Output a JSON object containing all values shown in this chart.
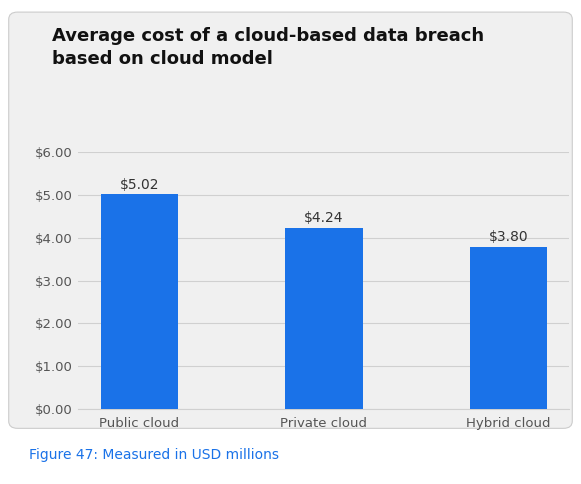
{
  "title": "Average cost of a cloud-based data breach\nbased on cloud model",
  "categories": [
    "Public cloud",
    "Private cloud",
    "Hybrid cloud"
  ],
  "values": [
    5.02,
    4.24,
    3.8
  ],
  "bar_color": "#1a72e8",
  "bar_labels": [
    "$5.02",
    "$4.24",
    "$3.80"
  ],
  "ylim": [
    0,
    6.0
  ],
  "yticks": [
    0.0,
    1.0,
    2.0,
    3.0,
    4.0,
    5.0,
    6.0
  ],
  "ytick_labels": [
    "$0.00",
    "$1.00",
    "$2.00",
    "$3.00",
    "$4.00",
    "$5.00",
    "$6.00"
  ],
  "figure_caption": "Figure 47: Measured in USD millions",
  "bg_color": "#f0f0f0",
  "plot_bg_color": "#f0f0f0",
  "outer_bg_color": "#ffffff",
  "title_fontsize": 13.0,
  "label_fontsize": 10.0,
  "tick_fontsize": 9.5,
  "caption_fontsize": 10,
  "bar_width": 0.42,
  "grid_color": "#d0d0d0"
}
